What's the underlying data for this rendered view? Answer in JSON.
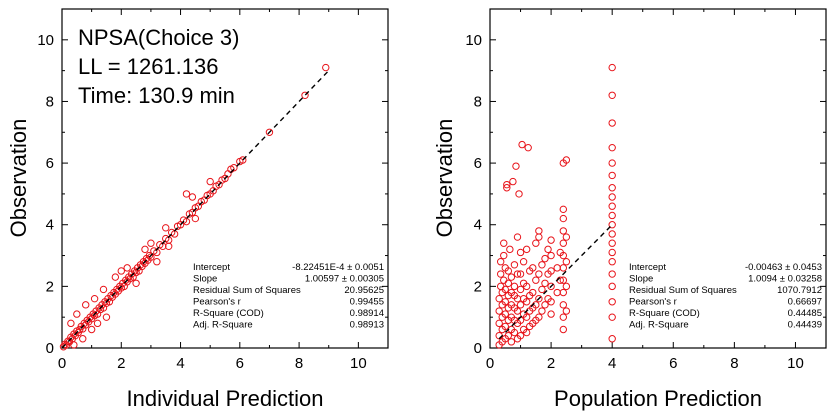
{
  "colors": {
    "marker": "#e8141a",
    "axis": "#000000",
    "fit_line": "#000000"
  },
  "chart_data": [
    {
      "type": "scatter",
      "xlabel": "Individual Prediction",
      "ylabel": "Observation",
      "xlim": [
        0,
        11
      ],
      "ylim": [
        0,
        11
      ],
      "xticks": [
        0,
        2,
        4,
        6,
        8,
        10
      ],
      "yticks": [
        0,
        2,
        4,
        6,
        8,
        10
      ],
      "grid": false,
      "annotations": [
        "NPSA(Choice 3)",
        "LL = 1261.136",
        "Time: 130.9 min"
      ],
      "fit_line": {
        "style": "dashed",
        "from": [
          0,
          0
        ],
        "to": [
          9,
          9
        ]
      },
      "stats_table": [
        {
          "label": "Intercept",
          "value": "-8.22451E-4 ± 0.0051"
        },
        {
          "label": "Slope",
          "value": "1.00597 ± 0.00305"
        },
        {
          "label": "Residual Sum of Squares",
          "value": "20.95625"
        },
        {
          "label": "Pearson's r",
          "value": "0.99455"
        },
        {
          "label": "R-Square (COD)",
          "value": "0.98914"
        },
        {
          "label": "Adj. R-Square",
          "value": "0.98913"
        }
      ],
      "series": [
        {
          "marker": "open-circle",
          "points": [
            [
              0.05,
              0.04
            ],
            [
              0.1,
              0.12
            ],
            [
              0.15,
              0.1
            ],
            [
              0.2,
              0.22
            ],
            [
              0.25,
              0.2
            ],
            [
              0.3,
              0.35
            ],
            [
              0.35,
              0.3
            ],
            [
              0.4,
              0.45
            ],
            [
              0.45,
              0.4
            ],
            [
              0.5,
              0.55
            ],
            [
              0.55,
              0.5
            ],
            [
              0.6,
              0.6
            ],
            [
              0.65,
              0.7
            ],
            [
              0.7,
              0.62
            ],
            [
              0.75,
              0.8
            ],
            [
              0.8,
              0.75
            ],
            [
              0.85,
              0.9
            ],
            [
              0.9,
              0.85
            ],
            [
              0.95,
              1.0
            ],
            [
              1.0,
              0.95
            ],
            [
              1.05,
              1.1
            ],
            [
              1.1,
              1.05
            ],
            [
              1.15,
              1.2
            ],
            [
              1.2,
              1.1
            ],
            [
              1.25,
              1.3
            ],
            [
              1.3,
              1.25
            ],
            [
              1.35,
              1.4
            ],
            [
              1.4,
              1.3
            ],
            [
              1.45,
              1.5
            ],
            [
              1.5,
              1.45
            ],
            [
              1.55,
              1.6
            ],
            [
              1.6,
              1.5
            ],
            [
              1.65,
              1.7
            ],
            [
              1.7,
              1.65
            ],
            [
              1.75,
              1.8
            ],
            [
              1.8,
              1.75
            ],
            [
              1.85,
              1.9
            ],
            [
              1.9,
              1.85
            ],
            [
              1.95,
              2.0
            ],
            [
              2.0,
              1.95
            ],
            [
              2.05,
              2.1
            ],
            [
              2.1,
              2.0
            ],
            [
              2.15,
              2.2
            ],
            [
              2.2,
              2.15
            ],
            [
              2.25,
              2.3
            ],
            [
              2.3,
              2.25
            ],
            [
              2.35,
              2.4
            ],
            [
              2.4,
              2.3
            ],
            [
              2.45,
              2.5
            ],
            [
              2.5,
              2.45
            ],
            [
              2.55,
              2.6
            ],
            [
              2.6,
              2.5
            ],
            [
              2.65,
              2.7
            ],
            [
              2.7,
              2.65
            ],
            [
              2.75,
              2.8
            ],
            [
              2.8,
              2.75
            ],
            [
              2.85,
              2.9
            ],
            [
              2.9,
              2.85
            ],
            [
              2.95,
              3.0
            ],
            [
              3.0,
              2.95
            ],
            [
              3.1,
              3.15
            ],
            [
              3.2,
              3.1
            ],
            [
              3.3,
              3.35
            ],
            [
              3.4,
              3.3
            ],
            [
              3.5,
              3.55
            ],
            [
              3.6,
              3.5
            ],
            [
              3.7,
              3.75
            ],
            [
              3.8,
              3.7
            ],
            [
              3.9,
              3.95
            ],
            [
              4.0,
              4.0
            ],
            [
              4.1,
              4.15
            ],
            [
              4.2,
              4.1
            ],
            [
              4.3,
              4.35
            ],
            [
              4.4,
              4.4
            ],
            [
              4.5,
              4.55
            ],
            [
              4.6,
              4.6
            ],
            [
              4.7,
              4.75
            ],
            [
              4.8,
              4.8
            ],
            [
              4.9,
              4.95
            ],
            [
              5.0,
              5.0
            ],
            [
              5.1,
              5.1
            ],
            [
              5.2,
              5.25
            ],
            [
              5.3,
              5.3
            ],
            [
              5.4,
              5.45
            ],
            [
              5.5,
              5.5
            ],
            [
              5.6,
              5.65
            ],
            [
              5.7,
              5.8
            ],
            [
              5.8,
              5.85
            ],
            [
              6.0,
              6.05
            ],
            [
              6.1,
              6.1
            ],
            [
              7.0,
              7.0
            ],
            [
              8.2,
              8.2
            ],
            [
              8.9,
              9.1
            ],
            [
              0.3,
              0.8
            ],
            [
              0.5,
              1.1
            ],
            [
              0.8,
              1.4
            ],
            [
              1.0,
              0.6
            ],
            [
              1.2,
              0.8
            ],
            [
              1.5,
              1.0
            ],
            [
              1.8,
              2.3
            ],
            [
              2.2,
              2.6
            ],
            [
              2.5,
              2.1
            ],
            [
              3.0,
              3.4
            ],
            [
              3.2,
              2.8
            ],
            [
              3.5,
              3.9
            ],
            [
              4.2,
              5.0
            ],
            [
              4.5,
              4.2
            ],
            [
              5.0,
              5.4
            ],
            [
              0.4,
              0.1
            ],
            [
              0.7,
              0.3
            ],
            [
              1.1,
              1.6
            ],
            [
              1.4,
              1.9
            ],
            [
              2.0,
              2.5
            ],
            [
              2.8,
              3.2
            ],
            [
              3.6,
              3.3
            ],
            [
              4.4,
              4.9
            ]
          ]
        }
      ]
    },
    {
      "type": "scatter",
      "xlabel": "Population Prediction",
      "ylabel": "Observation",
      "xlim": [
        0,
        11
      ],
      "ylim": [
        0,
        11
      ],
      "xticks": [
        0,
        2,
        4,
        6,
        8,
        10
      ],
      "yticks": [
        0,
        2,
        4,
        6,
        8,
        10
      ],
      "grid": false,
      "fit_line": {
        "style": "dashed",
        "from": [
          0.3,
          0.3
        ],
        "to": [
          4,
          4
        ]
      },
      "stats_table": [
        {
          "label": "Intercept",
          "value": "-0.00463 ± 0.0453"
        },
        {
          "label": "Slope",
          "value": "1.0094 ± 0.03258"
        },
        {
          "label": "Residual Sum of Squares",
          "value": "1070.7912"
        },
        {
          "label": "Pearson's r",
          "value": "0.66697"
        },
        {
          "label": "R-Square (COD)",
          "value": "0.44485"
        },
        {
          "label": "Adj. R-Square",
          "value": "0.44439"
        }
      ],
      "series": [
        {
          "marker": "open-circle",
          "points": [
            [
              0.3,
              0.1
            ],
            [
              0.3,
              0.4
            ],
            [
              0.3,
              0.8
            ],
            [
              0.3,
              1.2
            ],
            [
              0.3,
              1.6
            ],
            [
              0.35,
              2.0
            ],
            [
              0.35,
              2.4
            ],
            [
              0.35,
              2.8
            ],
            [
              0.4,
              0.2
            ],
            [
              0.4,
              0.6
            ],
            [
              0.4,
              1.0
            ],
            [
              0.4,
              1.4
            ],
            [
              0.4,
              1.8
            ],
            [
              0.45,
              2.2
            ],
            [
              0.45,
              3.0
            ],
            [
              0.45,
              3.4
            ],
            [
              0.5,
              0.3
            ],
            [
              0.5,
              0.7
            ],
            [
              0.5,
              1.1
            ],
            [
              0.5,
              1.5
            ],
            [
              0.5,
              1.9
            ],
            [
              0.5,
              2.6
            ],
            [
              0.55,
              5.2
            ],
            [
              0.55,
              5.3
            ],
            [
              0.6,
              0.4
            ],
            [
              0.6,
              0.9
            ],
            [
              0.6,
              1.3
            ],
            [
              0.6,
              1.7
            ],
            [
              0.6,
              2.1
            ],
            [
              0.6,
              2.5
            ],
            [
              0.65,
              3.2
            ],
            [
              0.7,
              0.2
            ],
            [
              0.7,
              0.6
            ],
            [
              0.7,
              1.0
            ],
            [
              0.7,
              1.4
            ],
            [
              0.7,
              1.8
            ],
            [
              0.7,
              2.3
            ],
            [
              0.75,
              5.4
            ],
            [
              0.8,
              0.5
            ],
            [
              0.8,
              0.9
            ],
            [
              0.8,
              1.3
            ],
            [
              0.8,
              1.7
            ],
            [
              0.8,
              2.0
            ],
            [
              0.8,
              2.7
            ],
            [
              0.85,
              5.9
            ],
            [
              0.9,
              0.3
            ],
            [
              0.9,
              0.8
            ],
            [
              0.9,
              1.2
            ],
            [
              0.9,
              1.6
            ],
            [
              0.9,
              2.4
            ],
            [
              0.9,
              3.6
            ],
            [
              0.95,
              5.0
            ],
            [
              1.0,
              0.4
            ],
            [
              1.0,
              0.9
            ],
            [
              1.0,
              1.4
            ],
            [
              1.0,
              1.9
            ],
            [
              1.0,
              2.4
            ],
            [
              1.0,
              3.1
            ],
            [
              1.05,
              6.6
            ],
            [
              1.1,
              0.6
            ],
            [
              1.1,
              1.1
            ],
            [
              1.1,
              1.6
            ],
            [
              1.1,
              2.1
            ],
            [
              1.1,
              2.8
            ],
            [
              1.2,
              0.5
            ],
            [
              1.2,
              1.0
            ],
            [
              1.2,
              1.5
            ],
            [
              1.2,
              2.0
            ],
            [
              1.2,
              3.2
            ],
            [
              1.25,
              6.5
            ],
            [
              1.3,
              0.7
            ],
            [
              1.3,
              1.2
            ],
            [
              1.3,
              1.7
            ],
            [
              1.3,
              2.5
            ],
            [
              1.4,
              0.8
            ],
            [
              1.4,
              1.3
            ],
            [
              1.4,
              1.8
            ],
            [
              1.4,
              2.6
            ],
            [
              1.5,
              0.9
            ],
            [
              1.5,
              1.4
            ],
            [
              1.5,
              2.2
            ],
            [
              1.5,
              3.4
            ],
            [
              1.6,
              1.0
            ],
            [
              1.6,
              1.6
            ],
            [
              1.6,
              2.4
            ],
            [
              1.6,
              3.6
            ],
            [
              1.6,
              3.8
            ],
            [
              1.7,
              1.2
            ],
            [
              1.7,
              1.9
            ],
            [
              1.7,
              2.7
            ],
            [
              1.8,
              1.4
            ],
            [
              1.8,
              2.1
            ],
            [
              1.8,
              2.9
            ],
            [
              1.9,
              1.6
            ],
            [
              1.9,
              2.4
            ],
            [
              1.9,
              3.2
            ],
            [
              2.0,
              1.1
            ],
            [
              2.0,
              1.5
            ],
            [
              2.0,
              2.0
            ],
            [
              2.0,
              2.5
            ],
            [
              2.0,
              3.0
            ],
            [
              2.0,
              3.5
            ],
            [
              2.2,
              1.8
            ],
            [
              2.2,
              2.6
            ],
            [
              2.3,
              2.2
            ],
            [
              2.3,
              3.1
            ],
            [
              2.4,
              0.6
            ],
            [
              2.4,
              1.0
            ],
            [
              2.4,
              1.4
            ],
            [
              2.4,
              1.8
            ],
            [
              2.4,
              2.2
            ],
            [
              2.4,
              2.6
            ],
            [
              2.4,
              3.0
            ],
            [
              2.4,
              3.4
            ],
            [
              2.4,
              3.8
            ],
            [
              2.4,
              4.2
            ],
            [
              2.4,
              4.5
            ],
            [
              2.4,
              6.0
            ],
            [
              2.5,
              1.2
            ],
            [
              2.5,
              2.0
            ],
            [
              2.5,
              2.8
            ],
            [
              2.5,
              3.6
            ],
            [
              2.5,
              6.1
            ],
            [
              4.0,
              0.3
            ],
            [
              4.0,
              1.0
            ],
            [
              4.0,
              1.5
            ],
            [
              4.0,
              2.0
            ],
            [
              4.0,
              2.4
            ],
            [
              4.0,
              2.8
            ],
            [
              4.0,
              3.1
            ],
            [
              4.0,
              3.4
            ],
            [
              4.0,
              3.7
            ],
            [
              4.0,
              4.0
            ],
            [
              4.0,
              4.3
            ],
            [
              4.0,
              4.6
            ],
            [
              4.0,
              4.9
            ],
            [
              4.0,
              5.2
            ],
            [
              4.0,
              5.6
            ],
            [
              4.0,
              6.0
            ],
            [
              4.0,
              6.5
            ],
            [
              4.0,
              7.3
            ],
            [
              4.0,
              8.2
            ],
            [
              4.0,
              9.1
            ]
          ]
        }
      ]
    }
  ]
}
